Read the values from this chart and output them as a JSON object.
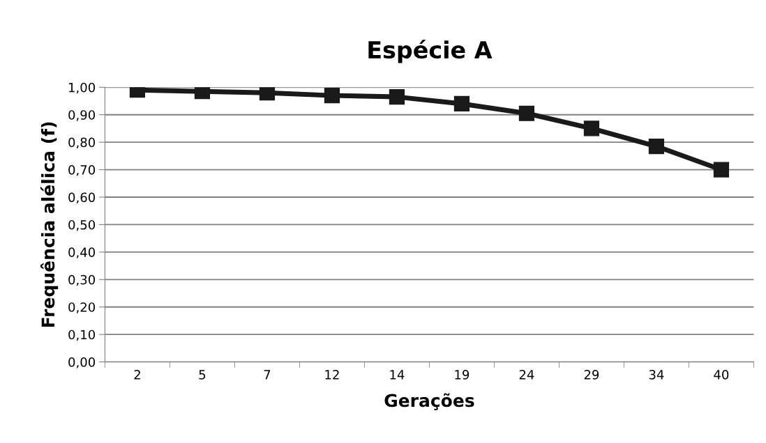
{
  "chart_data": {
    "type": "line",
    "title": "Espécie A",
    "xlabel": "Gerações",
    "ylabel": "Frequência alélica (f)",
    "categories": [
      "2",
      "5",
      "7",
      "12",
      "14",
      "19",
      "24",
      "29",
      "34",
      "40"
    ],
    "series": [
      {
        "color": "#1a1a1a",
        "values": [
          0.99,
          0.985,
          0.98,
          0.97,
          0.965,
          0.94,
          0.905,
          0.85,
          0.785,
          0.7
        ]
      }
    ],
    "ylim": [
      0,
      1
    ],
    "yticks": [
      {
        "value": 0,
        "label": "0,00"
      },
      {
        "value": 0.1,
        "label": "0,10"
      },
      {
        "value": 0.2,
        "label": "0,20"
      },
      {
        "value": 0.3,
        "label": "0,30"
      },
      {
        "value": 0.4,
        "label": "0,40"
      },
      {
        "value": 0.5,
        "label": "0,50"
      },
      {
        "value": 0.6,
        "label": "0,60"
      },
      {
        "value": 0.7,
        "label": "0,70"
      },
      {
        "value": 0.8,
        "label": "0,80"
      },
      {
        "value": 0.9,
        "label": "0,90"
      },
      {
        "value": 1,
        "label": "1,00"
      }
    ],
    "grid": "y",
    "marker": "square",
    "line_style": "solid",
    "legend": false
  }
}
